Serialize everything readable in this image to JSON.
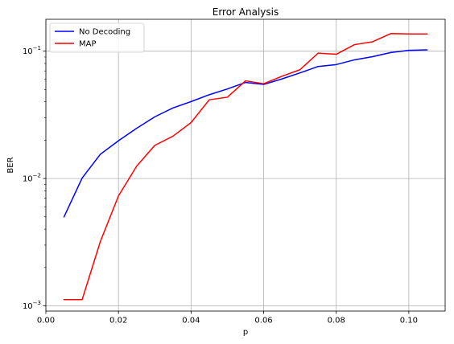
{
  "chart_data": {
    "type": "line",
    "title": "Error Analysis",
    "xlabel": "p",
    "ylabel": "BER",
    "x_scale": "linear",
    "y_scale": "log",
    "xlim": [
      0.0,
      0.11
    ],
    "ylim": [
      0.00091,
      0.178
    ],
    "x_ticks": [
      0.0,
      0.02,
      0.04,
      0.06,
      0.08,
      0.1
    ],
    "x_tick_labels": [
      "0.00",
      "0.02",
      "0.04",
      "0.06",
      "0.08",
      "0.10"
    ],
    "y_ticks": [
      0.001,
      0.01,
      0.1
    ],
    "y_tick_labels": [
      {
        "base": "10",
        "exp": "−3"
      },
      {
        "base": "10",
        "exp": "−2"
      },
      {
        "base": "10",
        "exp": "−1"
      }
    ],
    "grid": true,
    "legend_position": "top-left",
    "x": [
      0.005,
      0.01,
      0.015,
      0.02,
      0.025,
      0.03,
      0.035,
      0.04,
      0.045,
      0.05,
      0.055,
      0.06,
      0.065,
      0.07,
      0.075,
      0.08,
      0.085,
      0.09,
      0.095,
      0.1,
      0.105
    ],
    "series": [
      {
        "name": "No Decoding",
        "color": "#0000ff",
        "values": [
          0.005,
          0.0101,
          0.0155,
          0.0198,
          0.0248,
          0.0305,
          0.0358,
          0.0402,
          0.0455,
          0.0505,
          0.0568,
          0.0548,
          0.0605,
          0.0675,
          0.0758,
          0.0785,
          0.0855,
          0.0905,
          0.0975,
          0.1015,
          0.1025
        ]
      },
      {
        "name": "MAP",
        "color": "#ff0000",
        "values": [
          0.00112,
          0.00112,
          0.0032,
          0.0073,
          0.0125,
          0.0182,
          0.0215,
          0.0275,
          0.0415,
          0.0435,
          0.0585,
          0.0555,
          0.0635,
          0.0715,
          0.0965,
          0.0945,
          0.1125,
          0.1185,
          0.1375,
          0.1365,
          0.1365
        ]
      }
    ]
  }
}
